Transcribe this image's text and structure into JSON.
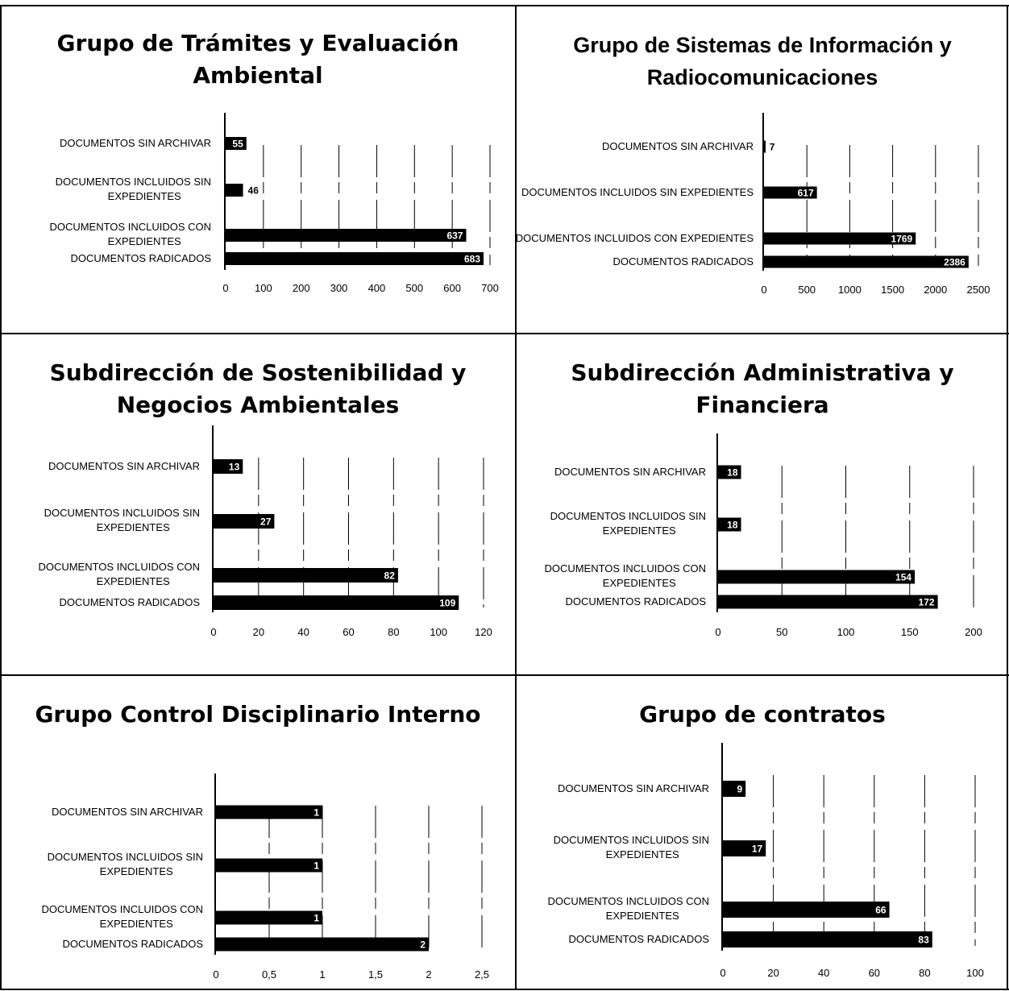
{
  "colors": {
    "bar": "#000000",
    "background": "#ffffff",
    "gridline": "#000000",
    "data_label": "#ffffff"
  },
  "chart_data": [
    {
      "type": "bar",
      "orientation": "horizontal",
      "title": "Grupo de Trámites y Evaluación Ambiental",
      "categories": [
        "DOCUMENTOS SIN ARCHIVAR",
        "DOCUMENTOS INCLUIDOS SIN EXPEDIENTES",
        "DOCUMENTOS INCLUIDOS CON EXPEDIENTES",
        "DOCUMENTOS RADICADOS"
      ],
      "values": [
        55,
        46,
        637,
        683
      ],
      "xlim": [
        0,
        700
      ],
      "xticks": [
        "0",
        "100",
        "200",
        "300",
        "400",
        "500",
        "600",
        "700"
      ],
      "grid": true,
      "legend": "none"
    },
    {
      "type": "bar",
      "orientation": "horizontal",
      "title": "Grupo de Sistemas de Información y Radiocomunicaciones",
      "categories": [
        "DOCUMENTOS SIN ARCHIVAR",
        "DOCUMENTOS INCLUIDOS SIN EXPEDIENTES",
        "DOCUMENTOS INCLUIDOS CON EXPEDIENTES",
        "DOCUMENTOS RADICADOS"
      ],
      "values": [
        7,
        617,
        1769,
        2386
      ],
      "xlim": [
        0,
        2500
      ],
      "xticks": [
        "0",
        "500",
        "1000",
        "1500",
        "2000",
        "2500"
      ],
      "grid": true,
      "legend": "none"
    },
    {
      "type": "bar",
      "orientation": "horizontal",
      "title": "Subdirección de Sostenibilidad y Negocios Ambientales",
      "categories": [
        "DOCUMENTOS SIN ARCHIVAR",
        "DOCUMENTOS INCLUIDOS SIN EXPEDIENTES",
        "DOCUMENTOS INCLUIDOS CON EXPEDIENTES",
        "DOCUMENTOS RADICADOS"
      ],
      "values": [
        13,
        27,
        82,
        109
      ],
      "xlim": [
        0,
        120
      ],
      "xticks": [
        "0",
        "20",
        "40",
        "60",
        "80",
        "100",
        "120"
      ],
      "grid": true,
      "legend": "none"
    },
    {
      "type": "bar",
      "orientation": "horizontal",
      "title": "Subdirección Administrativa y Financiera",
      "categories": [
        "DOCUMENTOS SIN ARCHIVAR",
        "DOCUMENTOS INCLUIDOS SIN EXPEDIENTES",
        "DOCUMENTOS INCLUIDOS CON EXPEDIENTES",
        "DOCUMENTOS RADICADOS"
      ],
      "values": [
        18,
        18,
        154,
        172
      ],
      "xlim": [
        0,
        200
      ],
      "xticks": [
        "0",
        "50",
        "100",
        "150",
        "200"
      ],
      "grid": true,
      "legend": "none"
    },
    {
      "type": "bar",
      "orientation": "horizontal",
      "title": "Grupo Control Disciplinario Interno",
      "categories": [
        "DOCUMENTOS SIN ARCHIVAR",
        "DOCUMENTOS INCLUIDOS SIN EXPEDIENTES",
        "DOCUMENTOS INCLUIDOS CON EXPEDIENTES",
        "DOCUMENTOS RADICADOS"
      ],
      "values": [
        1,
        1,
        1,
        2
      ],
      "xlim": [
        0,
        2.5
      ],
      "xticks": [
        "0",
        "0,5",
        "1",
        "1,5",
        "2",
        "2,5"
      ],
      "grid": true,
      "legend": "none"
    },
    {
      "type": "bar",
      "orientation": "horizontal",
      "title": "Grupo de contratos",
      "categories": [
        "DOCUMENTOS SIN ARCHIVAR",
        "DOCUMENTOS INCLUIDOS SIN EXPEDIENTES",
        "DOCUMENTOS INCLUIDOS CON EXPEDIENTES",
        "DOCUMENTOS RADICADOS"
      ],
      "values": [
        9,
        17,
        66,
        83
      ],
      "xlim": [
        0,
        100
      ],
      "xticks": [
        "0",
        "20",
        "40",
        "60",
        "80",
        "100"
      ],
      "grid": true,
      "legend": "none"
    }
  ]
}
